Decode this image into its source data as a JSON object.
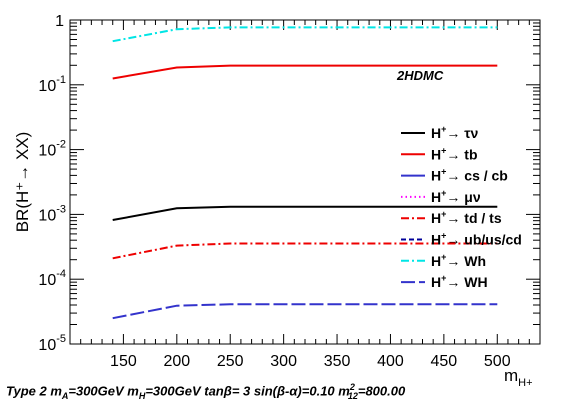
{
  "chart_data": {
    "type": "line",
    "y_scale": "log",
    "xlim": [
      100,
      540
    ],
    "ylim": [
      1e-05,
      1
    ],
    "x_ticks": [
      150,
      200,
      250,
      300,
      350,
      400,
      450,
      500
    ],
    "x_tick_labels": [
      "150",
      "200",
      "250",
      "300",
      "350",
      "400",
      "450",
      "500"
    ],
    "y_ticks": [
      1e-05,
      0.0001,
      0.001,
      0.01,
      0.1,
      1
    ],
    "y_tick_labels": [
      {
        "base": "10",
        "exp": "-5"
      },
      {
        "base": "10",
        "exp": "-4"
      },
      {
        "base": "10",
        "exp": "-3"
      },
      {
        "base": "10",
        "exp": "-2"
      },
      {
        "base": "10",
        "exp": "-1"
      },
      {
        "base": "1",
        "exp": ""
      }
    ],
    "xlabel": {
      "main": "m",
      "sub": "H+"
    },
    "ylabel": "BR(H⁺→ XX)",
    "annotation": "2HDMC",
    "legend_position": "right",
    "series": [
      {
        "name": "τν",
        "color": "#000000",
        "dash": "solid",
        "x": [
          140,
          200,
          250,
          300,
          350,
          400,
          450,
          500
        ],
        "y": [
          0.00082,
          0.00124,
          0.00131,
          0.00131,
          0.00131,
          0.00131,
          0.00131,
          0.00131
        ]
      },
      {
        "name": "tb",
        "color": "#ee0000",
        "dash": "solid",
        "x": [
          140,
          200,
          250,
          300,
          350,
          400,
          450,
          500
        ],
        "y": [
          0.125,
          0.185,
          0.198,
          0.198,
          0.198,
          0.198,
          0.198,
          0.198
        ]
      },
      {
        "name": "cs / cb",
        "color": "#3333cc",
        "dash": "solid",
        "x": [],
        "y": []
      },
      {
        "name": "μν",
        "color": "#ff00ff",
        "dash": "dot",
        "x": [],
        "y": []
      },
      {
        "name": "td / ts",
        "color": "#ee0000",
        "dash": "dashdot",
        "x": [
          140,
          200,
          250,
          300,
          350,
          400,
          450,
          500
        ],
        "y": [
          0.00021,
          0.00033,
          0.000355,
          0.000355,
          0.000355,
          0.000355,
          0.000355,
          0.000355
        ]
      },
      {
        "name": "ub/us/cd",
        "color": "#000099",
        "dash": "dash",
        "x": [],
        "y": []
      },
      {
        "name": "Wh",
        "color": "#00e5e5",
        "dash": "dashdot",
        "x": [
          140,
          200,
          250,
          300,
          350,
          400,
          450,
          500
        ],
        "y": [
          0.47,
          0.72,
          0.77,
          0.77,
          0.77,
          0.77,
          0.77,
          0.77
        ]
      },
      {
        "name": "WH",
        "color": "#3333cc",
        "dash": "longdash",
        "x": [
          140,
          200,
          250,
          300,
          350,
          400,
          450,
          500
        ],
        "y": [
          2.5e-05,
          3.9e-05,
          4.1e-05,
          4.1e-05,
          4.1e-05,
          4.1e-05,
          4.1e-05,
          4.1e-05
        ]
      }
    ],
    "legend_prefix": {
      "main": "H",
      "sup": "+",
      "arrow": "→"
    }
  },
  "caption": {
    "p1": "Type 2 m",
    "s1": "A",
    "p2": "=300GeV m",
    "s2": "H",
    "p3": "=300GeV tanβ= 3 sin(β-α)=0.10 m",
    "sup4": "2",
    "s4": "12",
    "p5": "=800.00"
  }
}
